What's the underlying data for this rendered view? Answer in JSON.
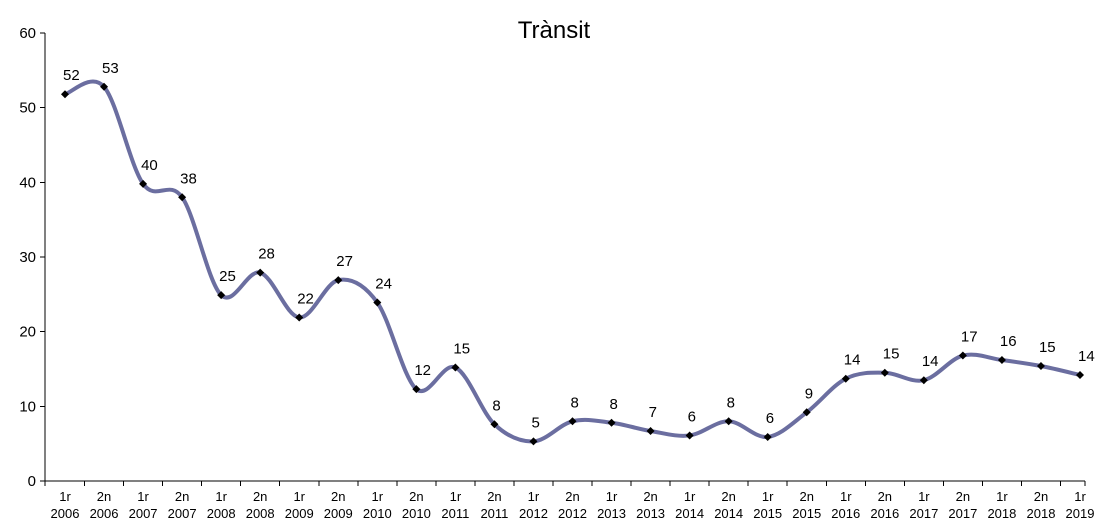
{
  "chart_data": {
    "type": "line",
    "title": "Trànsit",
    "xlabel": "",
    "ylabel": "",
    "ylim": [
      0,
      60
    ],
    "yticks": [
      0,
      10,
      20,
      30,
      40,
      50,
      60
    ],
    "grid": false,
    "legend": "none",
    "line_color": "#6B6EA0",
    "marker_color": "#000000",
    "categories": [
      {
        "semester": "1r",
        "year": "2006"
      },
      {
        "semester": "2n",
        "year": "2006"
      },
      {
        "semester": "1r",
        "year": "2007"
      },
      {
        "semester": "2n",
        "year": "2007"
      },
      {
        "semester": "1r",
        "year": "2008"
      },
      {
        "semester": "2n",
        "year": "2008"
      },
      {
        "semester": "1r",
        "year": "2009"
      },
      {
        "semester": "2n",
        "year": "2009"
      },
      {
        "semester": "1r",
        "year": "2010"
      },
      {
        "semester": "2n",
        "year": "2010"
      },
      {
        "semester": "1r",
        "year": "2011"
      },
      {
        "semester": "2n",
        "year": "2011"
      },
      {
        "semester": "1r",
        "year": "2012"
      },
      {
        "semester": "2n",
        "year": "2012"
      },
      {
        "semester": "1r",
        "year": "2013"
      },
      {
        "semester": "2n",
        "year": "2013"
      },
      {
        "semester": "1r",
        "year": "2014"
      },
      {
        "semester": "2n",
        "year": "2014"
      },
      {
        "semester": "1r",
        "year": "2015"
      },
      {
        "semester": "2n",
        "year": "2015"
      },
      {
        "semester": "1r",
        "year": "2016"
      },
      {
        "semester": "2n",
        "year": "2016"
      },
      {
        "semester": "1r",
        "year": "2017"
      },
      {
        "semester": "2n",
        "year": "2017"
      },
      {
        "semester": "1r",
        "year": "2018"
      },
      {
        "semester": "2n",
        "year": "2018"
      },
      {
        "semester": "1r",
        "year": "2019"
      }
    ],
    "values": [
      51.8,
      52.8,
      39.8,
      38,
      24.9,
      27.9,
      21.9,
      26.9,
      23.9,
      12.3,
      15.2,
      7.6,
      5.3,
      8,
      7.8,
      6.7,
      6.1,
      8,
      5.9,
      9.2,
      13.7,
      14.5,
      13.5,
      16.8,
      16.2,
      15.4,
      14.2
    ],
    "data_labels": [
      "52",
      "53",
      "40",
      "38",
      "25",
      "28",
      "22",
      "27",
      "24",
      "12",
      "15",
      "8",
      "5",
      "8",
      "8",
      "7",
      "6",
      "8",
      "6",
      "9",
      "14",
      "15",
      "14",
      "17",
      "16",
      "15",
      "14"
    ]
  }
}
